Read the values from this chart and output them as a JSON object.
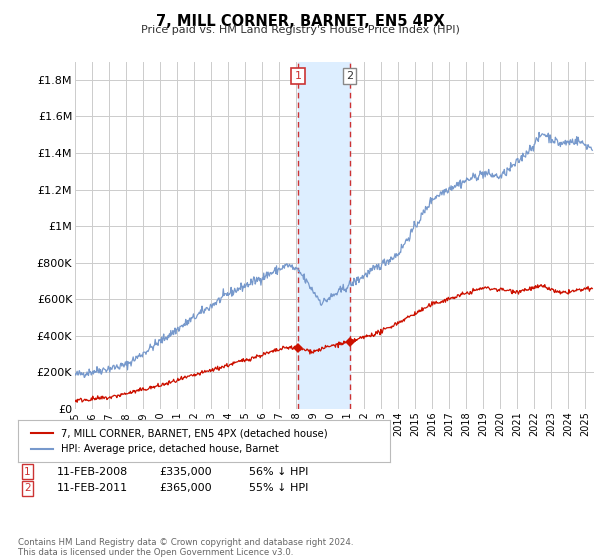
{
  "title": "7, MILL CORNER, BARNET, EN5 4PX",
  "subtitle": "Price paid vs. HM Land Registry's House Price Index (HPI)",
  "hpi_color": "#7799cc",
  "price_color": "#cc1100",
  "background_color": "#ffffff",
  "grid_color": "#cccccc",
  "highlight_fill": "#ddeeff",
  "highlight_border": "#cc3333",
  "t1_year": 2008.1,
  "t1_price": 335000,
  "t2_year": 2011.1,
  "t2_price": 365000,
  "ylabel_ticks": [
    0,
    200000,
    400000,
    600000,
    800000,
    1000000,
    1200000,
    1400000,
    1600000,
    1800000
  ],
  "ylabel_labels": [
    "£0",
    "£200K",
    "£400K",
    "£600K",
    "£800K",
    "£1M",
    "£1.2M",
    "£1.4M",
    "£1.6M",
    "£1.8M"
  ],
  "xmin": 1995,
  "xmax": 2025.5,
  "ymin": 0,
  "ymax": 1900000,
  "legend_line1": "7, MILL CORNER, BARNET, EN5 4PX (detached house)",
  "legend_line2": "HPI: Average price, detached house, Barnet",
  "ann1_num": "1",
  "ann1_date": "11-FEB-2008",
  "ann1_price": "£335,000",
  "ann1_hpi": "56% ↓ HPI",
  "ann2_num": "2",
  "ann2_date": "11-FEB-2011",
  "ann2_price": "£365,000",
  "ann2_hpi": "55% ↓ HPI",
  "footer": "Contains HM Land Registry data © Crown copyright and database right 2024.\nThis data is licensed under the Open Government Licence v3.0."
}
